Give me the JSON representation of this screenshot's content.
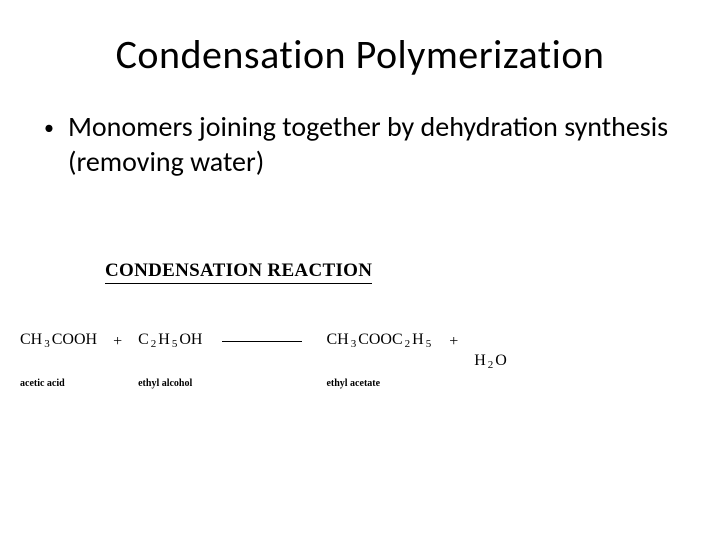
{
  "title": "Condensation Polymerization",
  "bullet": "Monomers joining together by dehydration synthesis (removing water)",
  "reaction": {
    "heading": "CONDENSATION REACTION",
    "terms": [
      {
        "formula_html": "CH <span class='sub'>3</span> COOH",
        "label": "acetic acid"
      },
      {
        "plus": "+"
      },
      {
        "formula_html": "C <span class='sub'>2</span> H<span class='sub'>5</span> OH",
        "label": "ethyl alcohol"
      },
      {
        "arrow": true
      },
      {
        "formula_html": "CH <span class='sub'>3</span> COOC <span class='sub'>2</span> H<span class='sub'>5</span>",
        "label": "ethyl acetate"
      },
      {
        "plus": "+"
      },
      {
        "formula_html": "H<span class='sub'>2</span> O",
        "label": ""
      }
    ]
  },
  "colors": {
    "bg": "#ffffff",
    "text": "#000000"
  }
}
